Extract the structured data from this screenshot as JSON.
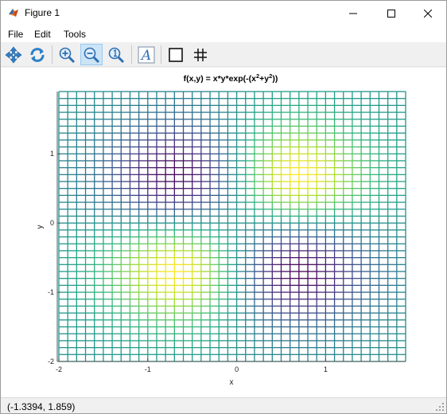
{
  "window": {
    "title": "Figure 1"
  },
  "menu": {
    "items": [
      "File",
      "Edit",
      "Tools"
    ]
  },
  "toolbar": {
    "buttons": [
      {
        "name": "pan-icon"
      },
      {
        "name": "rotate-icon"
      },
      {
        "name": "zoom-in-icon"
      },
      {
        "name": "zoom-out-icon",
        "active": true
      },
      {
        "name": "reset-zoom-icon"
      },
      {
        "name": "insert-text-icon"
      },
      {
        "name": "toggle-box-icon"
      },
      {
        "name": "toggle-grid-icon"
      }
    ]
  },
  "status": {
    "coordinates": "(-1.3394, 1.859)"
  },
  "chart_data": {
    "type": "mesh",
    "title": "f(x,y) = x*y*exp(-(x^2+y^2))",
    "title_parts": {
      "base": "f(x,y) = x*y*exp(-(x",
      "sup1": "2",
      "mid": "+y",
      "sup2": "2",
      "tail": "))"
    },
    "xlabel": "x",
    "ylabel": "y",
    "xlim": [
      -2,
      1.9
    ],
    "ylim": [
      -2,
      1.9
    ],
    "grid_step": 0.1,
    "view": "top",
    "colormap": "viridis",
    "z_range": [
      -0.1839,
      0.1839
    ],
    "xticks": [
      -2,
      -1,
      0,
      1
    ],
    "yticks": [
      -2,
      -1,
      0,
      1
    ],
    "xtick_labels": [
      "-2",
      "-1",
      "0",
      "1"
    ],
    "ytick_labels": [
      "-2",
      "-1",
      "0",
      "1"
    ]
  }
}
